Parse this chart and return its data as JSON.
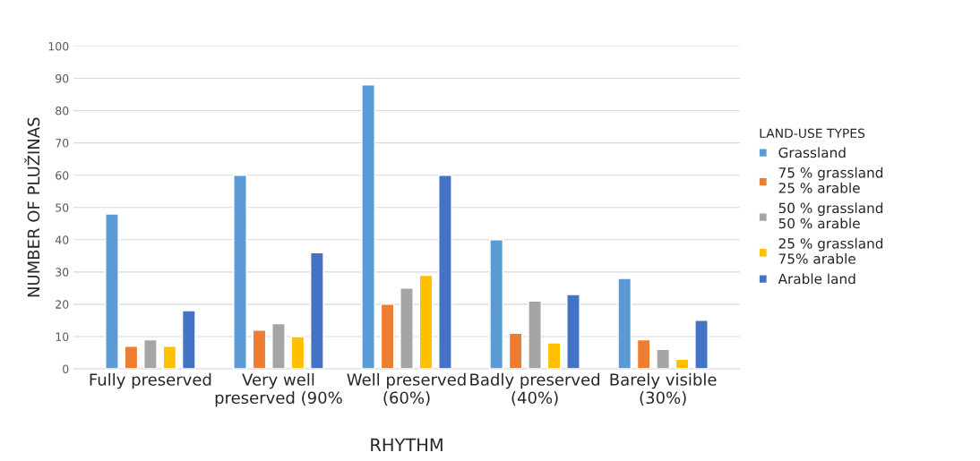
{
  "chart_data": {
    "type": "bar",
    "xlabel": "RHYTHM",
    "ylabel": "NUMBER OF PLUŽINAS",
    "legend_title": "LAND-USE TYPES",
    "categories": [
      "Fully preserved",
      "Very well\npreserved (90%",
      "Well preserved\n(60%)",
      "Badly preserved\n(40%)",
      "Barely visible\n(30%)"
    ],
    "series": [
      {
        "name": "Grassland",
        "color": "#5b9bd5",
        "values": [
          48,
          60,
          88,
          40,
          28
        ]
      },
      {
        "name": "75 % grassland\n25 % arable",
        "color": "#ed7d31",
        "values": [
          7,
          12,
          20,
          11,
          9
        ]
      },
      {
        "name": "50 % grassland\n50 % arable",
        "color": "#a5a5a5",
        "values": [
          9,
          14,
          25,
          21,
          6
        ]
      },
      {
        "name": "25 % grassland\n75% arable",
        "color": "#ffc000",
        "values": [
          7,
          10,
          29,
          8,
          3
        ]
      },
      {
        "name": "Arable land",
        "color": "#4472c4",
        "values": [
          18,
          36,
          60,
          23,
          15
        ]
      }
    ],
    "ylim": [
      0,
      100
    ],
    "yticks": [
      0,
      10,
      20,
      30,
      40,
      50,
      60,
      70,
      80,
      90,
      100
    ],
    "grid": "y",
    "legend": "right"
  }
}
